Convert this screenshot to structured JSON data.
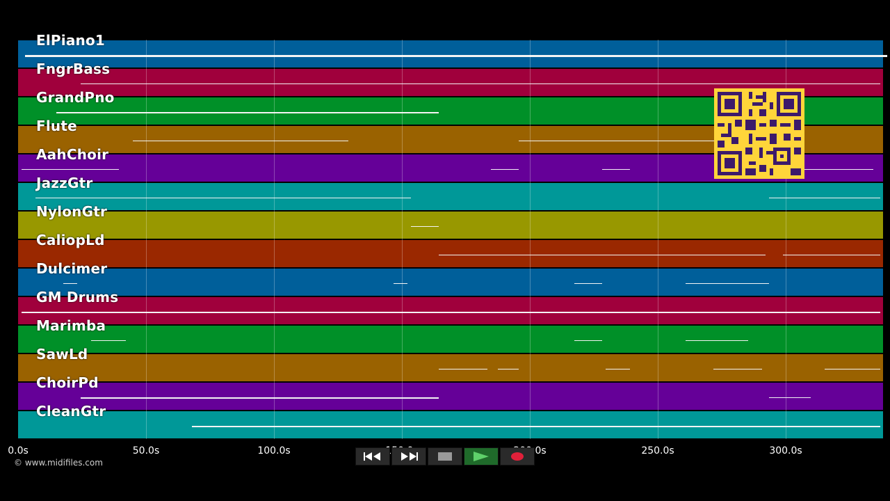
{
  "tracks": [
    {
      "name": "ElPiano1",
      "color": "#005f9a"
    },
    {
      "name": "FngrBass",
      "color": "#a0003c"
    },
    {
      "name": "GrandPno",
      "color": "#009028"
    },
    {
      "name": "Flute",
      "color": "#9a6200"
    },
    {
      "name": "AahChoir",
      "color": "#650098"
    },
    {
      "name": "JazzGtr",
      "color": "#009898"
    },
    {
      "name": "NylonGtr",
      "color": "#989800"
    },
    {
      "name": "CaliopLd",
      "color": "#9a2800"
    },
    {
      "name": "Dulcimer",
      "color": "#005f9a"
    },
    {
      "name": "GM Drums",
      "color": "#a0003c"
    },
    {
      "name": "Marimba",
      "color": "#009028"
    },
    {
      "name": "SawLd",
      "color": "#9a6200"
    },
    {
      "name": "ChoirPd",
      "color": "#650098"
    },
    {
      "name": "CleanGtr",
      "color": "#009898"
    }
  ],
  "timeline": {
    "ticks": [
      "0.0s",
      "50.0s",
      "100.0s",
      "150.0s",
      "200.0s",
      "250.0s",
      "300.0s"
    ]
  },
  "credit": "© www.midifiles.com",
  "controls": {
    "rewind": "rewind-icon",
    "fast_forward": "fast-forward-icon",
    "stop": "stop-icon",
    "play": "play-icon",
    "record": "record-icon"
  }
}
